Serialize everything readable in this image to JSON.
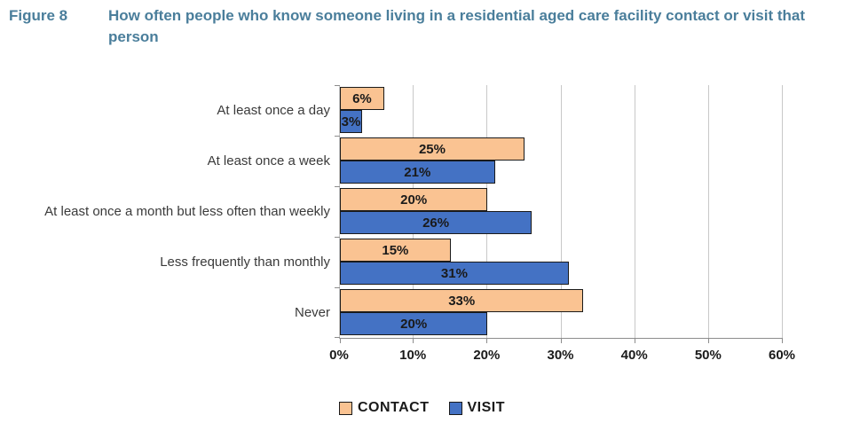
{
  "figure": {
    "label": "Figure 8",
    "title": "How often people who know someone living in a residential aged care facility contact or visit that person",
    "title_color": "#4a7e9b"
  },
  "chart_data": {
    "type": "bar",
    "orientation": "horizontal",
    "title": "How often people who know someone living in a residential aged care facility contact or visit that person",
    "xlabel": "",
    "ylabel": "",
    "categories": [
      "At least once a day",
      "At least once a week",
      "At least once a month but less often than weekly",
      "Less frequently than monthly",
      "Never"
    ],
    "series": [
      {
        "name": "CONTACT",
        "color": "#fac392",
        "values": [
          6,
          25,
          20,
          15,
          33
        ]
      },
      {
        "name": "VISIT",
        "color": "#4472c4",
        "values": [
          3,
          21,
          26,
          31,
          20
        ]
      }
    ],
    "value_label_format": "{value}%",
    "xlim": [
      0,
      60
    ],
    "xtick_step": 10,
    "xtick_labels": [
      "0%",
      "10%",
      "20%",
      "30%",
      "40%",
      "50%",
      "60%"
    ],
    "grid": "vertical",
    "gridline_color": "#c8c8c8",
    "legend_position": "bottom"
  }
}
